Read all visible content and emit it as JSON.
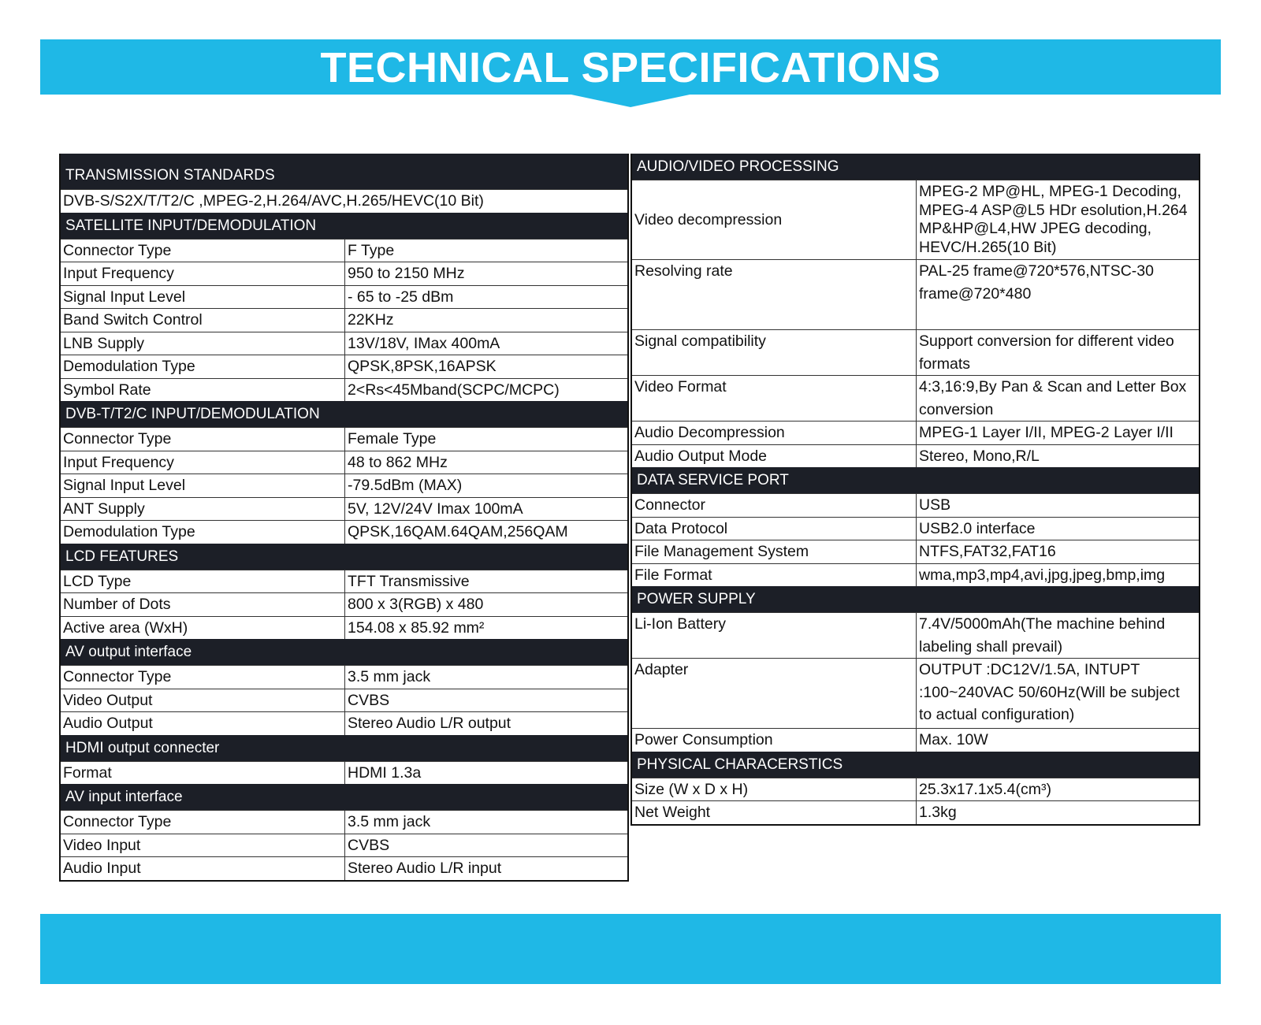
{
  "title": "TECHNICAL SPECIFICATIONS",
  "left": {
    "sections": [
      {
        "header": "TRANSMISSION STANDARDS",
        "rows": [
          [
            "DVB-S/S2X/T/T2/C ,MPEG-2,H.264/AVC,H.265/HEVC(10 Bit)"
          ]
        ]
      },
      {
        "header": "SATELLITE INPUT/DEMODULATION",
        "rows": [
          [
            "Connector Type",
            "F Type"
          ],
          [
            "Input Frequency",
            "950 to 2150 MHz"
          ],
          [
            "Signal Input Level",
            "- 65 to -25 dBm"
          ],
          [
            "Band Switch Control",
            "22KHz"
          ],
          [
            "LNB Supply",
            "13V/18V, IMax 400mA"
          ],
          [
            "Demodulation Type",
            "QPSK,8PSK,16APSK"
          ],
          [
            "Symbol Rate",
            "2<Rs<45Mband(SCPC/MCPC)"
          ]
        ]
      },
      {
        "header": "DVB-T/T2/C INPUT/DEMODULATION",
        "rows": [
          [
            "Connector Type",
            "Female Type"
          ],
          [
            "Input Frequency",
            "48 to 862 MHz"
          ],
          [
            "Signal Input Level",
            "-79.5dBm (MAX)"
          ],
          [
            "ANT Supply",
            "5V, 12V/24V Imax 100mA"
          ],
          [
            "Demodulation Type",
            "QPSK,16QAM.64QAM,256QAM"
          ]
        ]
      },
      {
        "header": "LCD FEATURES",
        "rows": [
          [
            "LCD Type",
            "TFT Transmissive"
          ],
          [
            "Number of Dots",
            "800 x 3(RGB) x 480"
          ],
          [
            "Active area (WxH)",
            "154.08 x 85.92 mm²"
          ]
        ]
      },
      {
        "header": "AV output interface",
        "rows": [
          [
            "Connector Type",
            "3.5 mm jack"
          ],
          [
            "Video Output",
            "CVBS"
          ],
          [
            "Audio Output",
            "Stereo Audio L/R output"
          ]
        ]
      },
      {
        "header": "HDMI output connecter",
        "rows": [
          [
            "Format",
            "HDMI 1.3a"
          ]
        ]
      },
      {
        "header": "AV input interface",
        "rows": [
          [
            "Connector Type",
            "3.5 mm jack"
          ],
          [
            "Video Input",
            "CVBS"
          ],
          [
            "Audio Input",
            "Stereo Audio L/R input"
          ]
        ]
      }
    ]
  },
  "right": {
    "sections": [
      {
        "header": "AUDIO/VIDEO PROCESSING",
        "rows": [
          [
            "Video decompression",
            "MPEG-2 MP@HL, MPEG-1 Decoding, MPEG-4 ASP@L5 HDr esolution,H.264 MP&HP@L4,HW JPEG decoding, HEVC/H.265(10 Bit)"
          ],
          [
            "Resolving rate",
            "PAL-25 frame@720*576,NTSC-30 frame@720*480"
          ],
          [
            "Signal compatibility",
            "Support conversion for different video formats"
          ],
          [
            "Video Format",
            "4:3,16:9,By Pan & Scan and Letter Box conversion"
          ],
          [
            "Audio Decompression",
            "MPEG-1 Layer I/II, MPEG-2 Layer I/II"
          ],
          [
            "Audio Output Mode",
            "Stereo, Mono,R/L"
          ]
        ]
      },
      {
        "header": "DATA SERVICE PORT",
        "rows": [
          [
            "Connector",
            "USB"
          ],
          [
            "Data Protocol",
            "USB2.0 interface"
          ],
          [
            "File Management System",
            "NTFS,FAT32,FAT16"
          ],
          [
            "File Format",
            "wma,mp3,mp4,avi,jpg,jpeg,bmp,img"
          ]
        ]
      },
      {
        "header": "POWER SUPPLY",
        "rows": [
          [
            "Li-Ion Battery",
            "7.4V/5000mAh(The machine behind labeling shall prevail)"
          ],
          [
            "Adapter",
            "OUTPUT :DC12V/1.5A, INTUPT :100~240VAC 50/60Hz(Will be subject to actual configuration)"
          ],
          [
            "Power Consumption",
            "Max. 10W"
          ]
        ]
      },
      {
        "header": "PHYSICAL CHARACERSTICS",
        "rows": [
          [
            "Size (W x D x H)",
            "25.3x17.1x5.4(cm³)"
          ],
          [
            "Net Weight",
            "1.3kg"
          ]
        ]
      }
    ]
  }
}
